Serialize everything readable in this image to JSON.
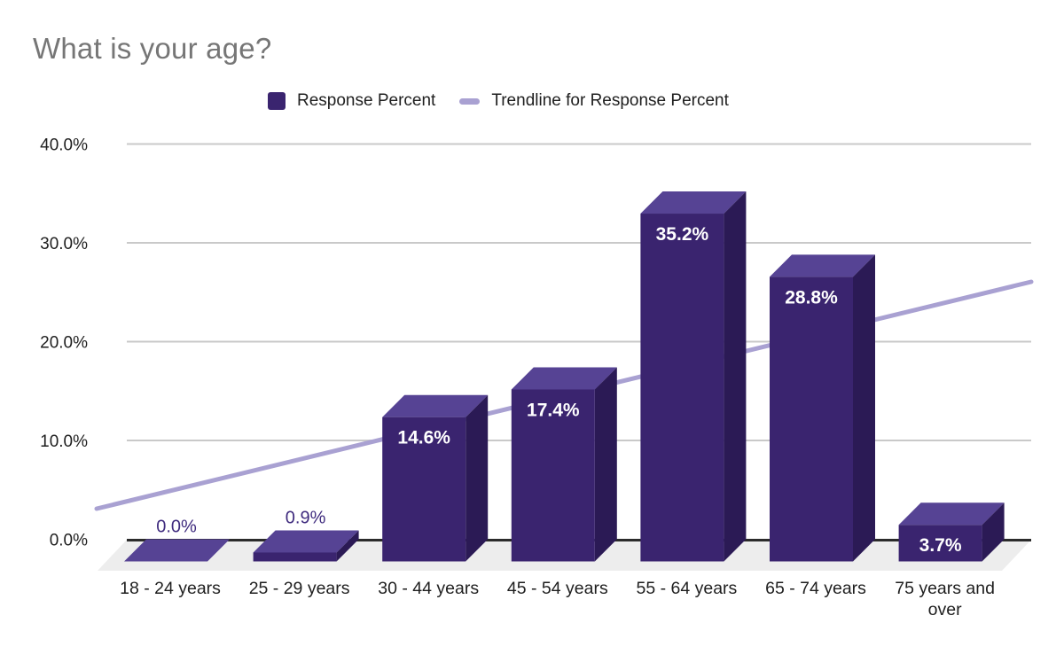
{
  "chart_data": {
    "type": "bar",
    "style_3d": true,
    "title": "What is your age?",
    "categories": [
      "18 - 24 years",
      "25 - 29 years",
      "30 - 44 years",
      "45 - 54 years",
      "55 - 64 years",
      "65 - 74 years",
      "75 years and over"
    ],
    "series": [
      {
        "name": "Response Percent",
        "values": [
          0.0,
          0.9,
          14.6,
          17.4,
          35.2,
          28.8,
          3.7
        ],
        "labels": [
          "0.0%",
          "0.9%",
          "14.6%",
          "17.4%",
          "35.2%",
          "28.8%",
          "3.7%"
        ]
      }
    ],
    "trendline": {
      "name": "Trendline for Response Percent",
      "start_value": 3.1,
      "end_value": 26.0
    },
    "y_axis": {
      "min": 0,
      "max": 40,
      "tick_step": 10,
      "tick_labels": [
        "0.0%",
        "10.0%",
        "20.0%",
        "30.0%",
        "40.0%"
      ],
      "grid": true
    },
    "legend_position": "top",
    "colors": {
      "bar_front": "#3A246F",
      "bar_top": "#564394",
      "bar_side": "#2B1A55",
      "trendline": "#A9A1D2",
      "gridline": "#C9C9C9",
      "axis_line": "#2B2B2B",
      "floor": "#EDEDED",
      "label_inside": "#FFFFFF",
      "label_outside": "#3F2B7E",
      "title": "#767676",
      "text": "#1F1F1F"
    }
  }
}
